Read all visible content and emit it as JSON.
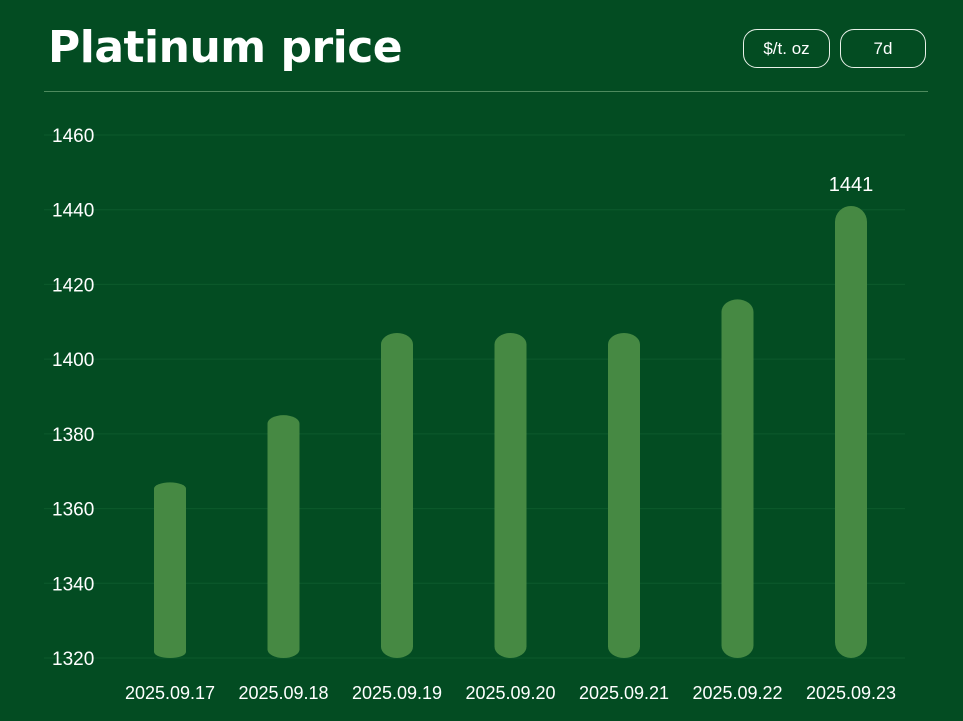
{
  "header": {
    "title": "Platinum price",
    "unit_label": "$/t. oz",
    "range_label": "7d"
  },
  "colors": {
    "background": "#034c22",
    "bar": "#468943",
    "grid": "#0d5a2c",
    "divider": "#4e8a5e"
  },
  "chart_data": {
    "type": "bar",
    "title": "Platinum price",
    "xlabel": "",
    "ylabel": "",
    "categories": [
      "2025.09.17",
      "2025.09.18",
      "2025.09.19",
      "2025.09.20",
      "2025.09.21",
      "2025.09.22",
      "2025.09.23"
    ],
    "values": [
      1367,
      1385,
      1407,
      1407,
      1407,
      1416,
      1441
    ],
    "ylim": [
      1320,
      1460
    ],
    "yticks": [
      1320,
      1340,
      1360,
      1380,
      1400,
      1420,
      1440,
      1460
    ],
    "data_labels": [
      {
        "category": "2025.09.23",
        "text": "1441"
      }
    ],
    "grid": true,
    "legend": "none"
  }
}
